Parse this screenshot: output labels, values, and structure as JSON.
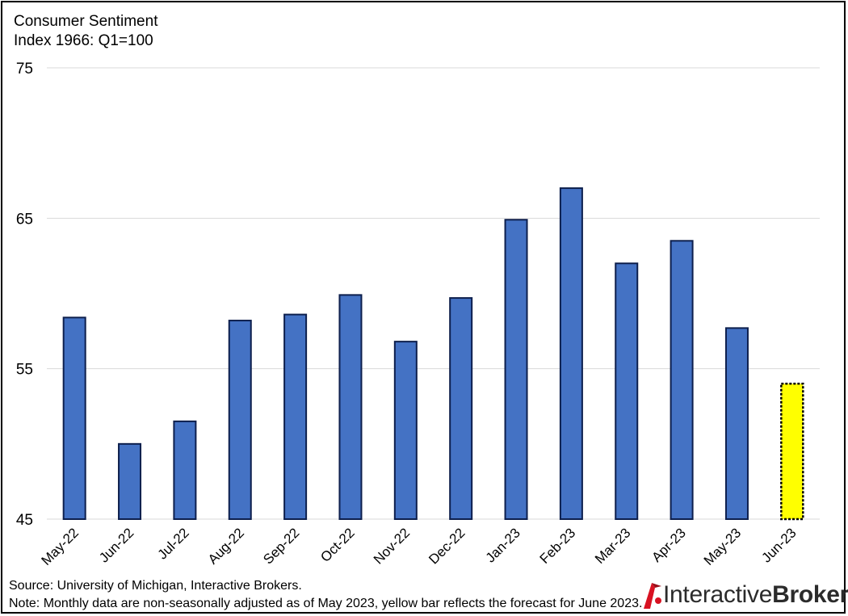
{
  "chart_data": {
    "type": "bar",
    "title": "Consumer Sentiment",
    "subtitle": "Index 1966: Q1=100",
    "categories": [
      "May-22",
      "Jun-22",
      "Jul-22",
      "Aug-22",
      "Sep-22",
      "Oct-22",
      "Nov-22",
      "Dec-22",
      "Jan-23",
      "Feb-23",
      "Mar-23",
      "Apr-23",
      "May-23",
      "Jun-23"
    ],
    "series": [
      {
        "values": [
          58.4,
          50.0,
          51.5,
          58.2,
          58.6,
          59.9,
          56.8,
          59.7,
          64.9,
          67.0,
          62.0,
          63.5,
          57.7,
          54.0
        ]
      }
    ],
    "forecast_index": 13,
    "ylim": [
      45,
      75
    ],
    "yticks": [
      45,
      55,
      65,
      75
    ],
    "grid": true,
    "colors": {
      "bar": "#4472C4",
      "bar_outline": "#0D1F4D",
      "forecast": "#FFFF00",
      "grid": "#D9D9D9"
    }
  },
  "footnotes": {
    "source": "Source: University of Michigan, Interactive Brokers.",
    "note": "Note: Monthly data are non-seasonally adjusted as of May 2023, yellow bar reflects the forecast for June 2023."
  },
  "logo": {
    "part1": "Interactive",
    "part2": "Brokers",
    "brand_color": "#D81222"
  }
}
